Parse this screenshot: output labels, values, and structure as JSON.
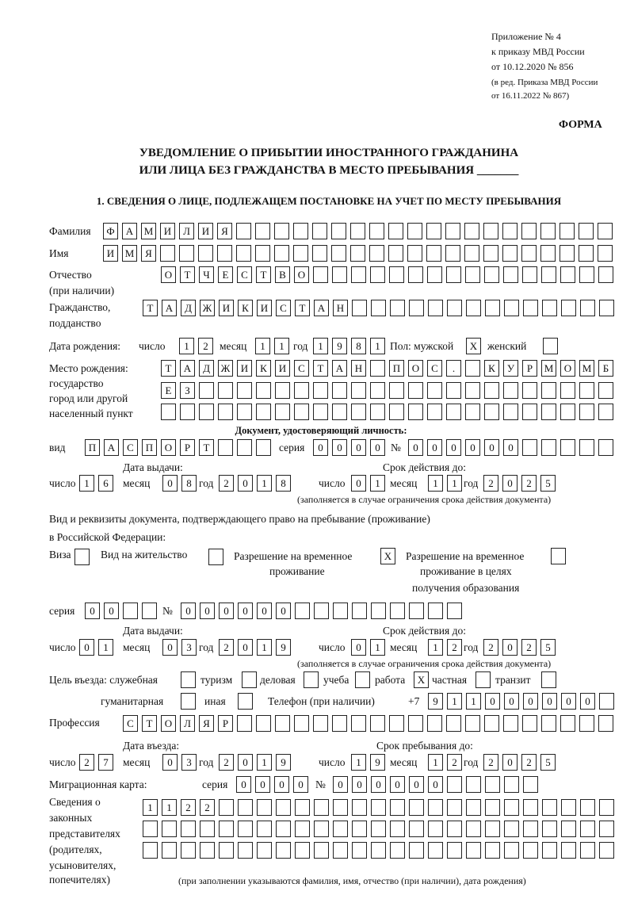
{
  "header": {
    "appendix": [
      "Приложение № 4",
      "к приказу МВД России",
      "от 10.12.2020 № 856"
    ],
    "revision": [
      "(в ред. Приказа МВД России",
      "от 16.11.2022 № 867)"
    ],
    "form_label": "ФОРМА",
    "title_line1": "УВЕДОМЛЕНИЕ О ПРИБЫТИИ ИНОСТРАННОГО ГРАЖДАНИНА",
    "title_line2": "ИЛИ ЛИЦА БЕЗ ГРАЖДАНСТВА В МЕСТО ПРЕБЫВАНИЯ _______",
    "section1": "1. СВЕДЕНИЯ О ЛИЦЕ, ПОДЛЕЖАЩЕМ ПОСТАНОВКЕ НА УЧЕТ ПО МЕСТУ ПРЕБЫВАНИЯ"
  },
  "labels": {
    "surname": "Фамилия",
    "name": "Имя",
    "patronymic": "Отчество",
    "patronymic2": "(при наличии)",
    "citizenship": "Гражданство,",
    "citizenship2": "подданство",
    "birth_date": "Дата рождения:",
    "day": "число",
    "month": "месяц",
    "year": "год",
    "sex": "Пол: мужской",
    "female": "женский",
    "birthplace": [
      "Место рождения:",
      "государство",
      "город или другой",
      "населенный пункт"
    ],
    "id_doc": "Документ, удостоверяющий личность:",
    "kind": "вид",
    "series": "серия",
    "number": "№",
    "issue_date": "Дата выдачи:",
    "valid_until": "Срок действия до:",
    "valid_note": "(заполняется в случае ограничения срока действия документа)",
    "right_doc": "Вид и реквизиты документа, подтверждающего право на пребывание (проживание)",
    "right_doc2": "в Российской Федерации:",
    "visa": "Виза",
    "residence": "Вид на жительство",
    "trp": [
      "Разрешение на временное",
      "проживание"
    ],
    "trp_edu": [
      "Разрешение на временное",
      "проживание в целях",
      "получения образования"
    ],
    "purpose": "Цель въезда: служебная",
    "tourism": "туризм",
    "business": "деловая",
    "study": "учеба",
    "work": "работа",
    "private": "частная",
    "transit": "транзит",
    "humanitarian": "гуманитарная",
    "other": "иная",
    "phone": "Телефон (при наличии)",
    "phone_prefix": "+7",
    "profession": "Профессия",
    "entry_date": "Дата въезда:",
    "stay_until": "Срок пребывания до:",
    "migration_card": "Миграционная карта:",
    "representatives": [
      "Сведения о",
      "законных",
      "представителях",
      "(родителях,",
      "усыновителях,",
      "попечителях)"
    ],
    "rep_note": "(при заполнении указываются фамилия, имя, отчество (при наличии), дата рождения)"
  },
  "fields": {
    "surname": "ФАМИЛИЯ",
    "name": "ИМЯ",
    "patronymic": "ОТЧЕСТВО",
    "citizenship": "ТАДЖИКИСТАН",
    "birth_day": "12",
    "birth_month": "11",
    "birth_year": "1981",
    "sex_male": "X",
    "sex_female": "",
    "birthplace1": "ТАДЖИКИСТАН ПОС. КУРМОМБ",
    "birthplace2": "ЕЗ",
    "birthplace3": "",
    "doc_kind": "ПАСПОРТ",
    "doc_series": "0000",
    "doc_number": "000000",
    "doc_issue_day": "16",
    "doc_issue_month": "08",
    "doc_issue_year": "2018",
    "doc_valid_day": "01",
    "doc_valid_month": "11",
    "doc_valid_year": "2025",
    "visa": "",
    "residence": "",
    "trp": "X",
    "trp_edu": "",
    "right_series": "00",
    "right_number": "000000",
    "right_issue_day": "01",
    "right_issue_month": "03",
    "right_issue_year": "2019",
    "right_valid_day": "01",
    "right_valid_month": "12",
    "right_valid_year": "2025",
    "p_official": "",
    "p_tourism": "",
    "p_business": "",
    "p_study": "",
    "p_work": "X",
    "p_private": "",
    "p_transit": "",
    "p_humanitarian": "",
    "p_other": "",
    "phone": "911000000",
    "profession": "СТОЛЯР",
    "entry_day": "27",
    "entry_month": "03",
    "entry_year": "2019",
    "stay_day": "19",
    "stay_month": "12",
    "stay_year": "2025",
    "mc_series": "0000",
    "mc_number": "000000",
    "rep1": "1122",
    "rep2": "",
    "rep3": ""
  }
}
